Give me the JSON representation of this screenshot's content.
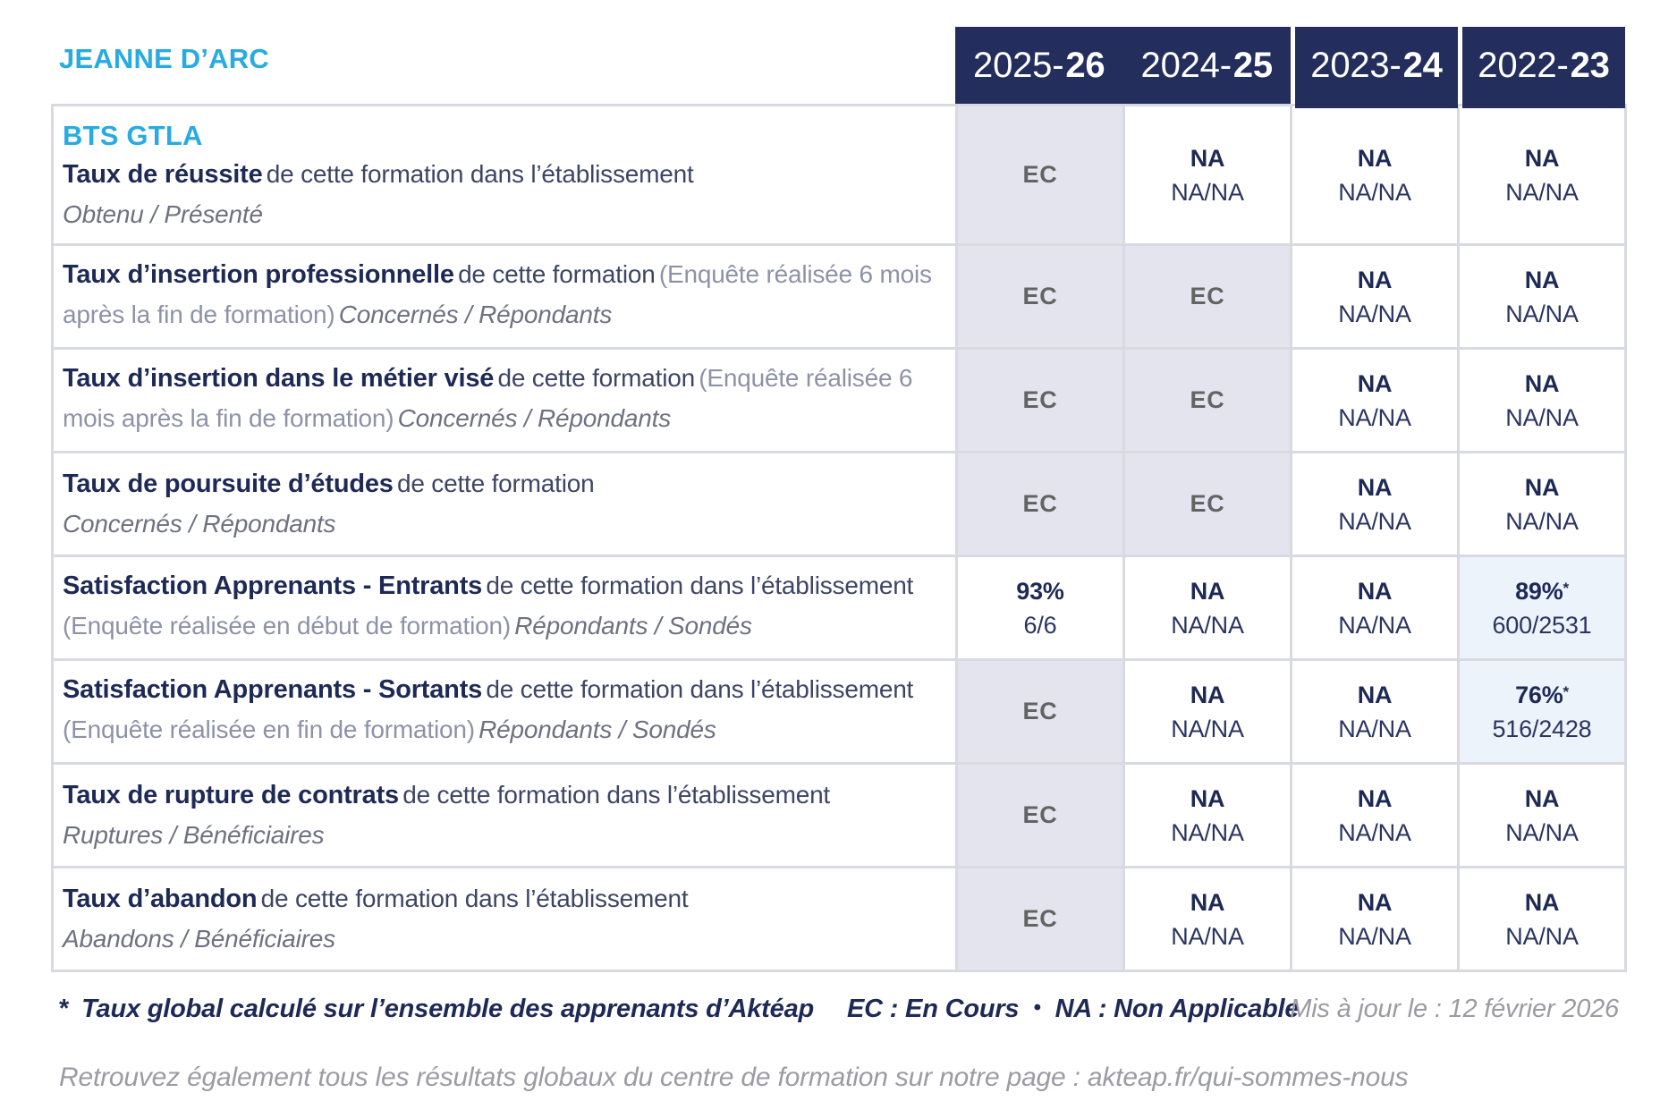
{
  "colors": {
    "accent_blue": "#29abe2",
    "navy_header": "#242e5c",
    "navy_text": "#1d2a56",
    "ec_cell_bg": "#e4e4ee",
    "highlight_cell_bg": "#ecf3fa"
  },
  "school": "JEANNE D’ARC",
  "program": "BTS GTLA",
  "years": [
    {
      "pre": "2025-",
      "bold": "26"
    },
    {
      "pre": "2024-",
      "bold": "25"
    },
    {
      "pre": "2023-",
      "bold": "24"
    },
    {
      "pre": "2022-",
      "bold": "23"
    }
  ],
  "rows": [
    {
      "title": "Taux de réussite",
      "desc": "de cette formation dans l’établissement",
      "paren": "",
      "sub": "Obtenu / Présenté",
      "cells": [
        {
          "main": "EC"
        },
        {
          "main": "NA",
          "sub": "NA/NA"
        },
        {
          "main": "NA",
          "sub": "NA/NA"
        },
        {
          "main": "NA",
          "sub": "NA/NA"
        }
      ]
    },
    {
      "title": "Taux d’insertion professionnelle",
      "desc": "de cette formation",
      "paren": "(Enquête réalisée 6 mois après la fin de formation)",
      "sub": "Concernés / Répondants",
      "cells": [
        {
          "main": "EC"
        },
        {
          "main": "EC"
        },
        {
          "main": "NA",
          "sub": "NA/NA"
        },
        {
          "main": "NA",
          "sub": "NA/NA"
        }
      ]
    },
    {
      "title": "Taux d’insertion dans le métier visé",
      "desc": "de cette formation",
      "paren": "(Enquête réalisée 6 mois après la fin de formation)",
      "sub": "Concernés / Répondants",
      "cells": [
        {
          "main": "EC"
        },
        {
          "main": "EC"
        },
        {
          "main": "NA",
          "sub": "NA/NA"
        },
        {
          "main": "NA",
          "sub": "NA/NA"
        }
      ]
    },
    {
      "title": "Taux de poursuite d’études",
      "desc": "de cette formation",
      "paren": "",
      "sub": "Concernés / Répondants",
      "cells": [
        {
          "main": "EC"
        },
        {
          "main": "EC"
        },
        {
          "main": "NA",
          "sub": "NA/NA"
        },
        {
          "main": "NA",
          "sub": "NA/NA"
        }
      ]
    },
    {
      "title": "Satisfaction Apprenants - Entrants",
      "desc": "de cette formation dans l’établissement",
      "paren": "(Enquête réalisée en début de formation)",
      "sub": "Répondants / Sondés",
      "cells": [
        {
          "main": "93%",
          "sub": "6/6"
        },
        {
          "main": "NA",
          "sub": "NA/NA"
        },
        {
          "main": "NA",
          "sub": "NA/NA"
        },
        {
          "main": "89%",
          "star": "*",
          "sub": "600/2531"
        }
      ]
    },
    {
      "title": "Satisfaction Apprenants - Sortants",
      "desc": "de cette formation dans l’établissement",
      "paren": "(Enquête réalisée en fin de formation)",
      "sub": "Répondants / Sondés",
      "cells": [
        {
          "main": "EC"
        },
        {
          "main": "NA",
          "sub": "NA/NA"
        },
        {
          "main": "NA",
          "sub": "NA/NA"
        },
        {
          "main": "76%",
          "star": "*",
          "sub": "516/2428"
        }
      ]
    },
    {
      "title": "Taux de rupture de contrats",
      "desc": "de cette formation dans l’établissement",
      "paren": "",
      "sub": "Ruptures / Bénéficiaires",
      "cells": [
        {
          "main": "EC"
        },
        {
          "main": "NA",
          "sub": "NA/NA"
        },
        {
          "main": "NA",
          "sub": "NA/NA"
        },
        {
          "main": "NA",
          "sub": "NA/NA"
        }
      ]
    },
    {
      "title": "Taux d’abandon",
      "desc": "de cette formation dans l’établissement",
      "paren": "",
      "sub": "Abandons / Bénéficiaires",
      "cells": [
        {
          "main": "EC"
        },
        {
          "main": "NA",
          "sub": "NA/NA"
        },
        {
          "main": "NA",
          "sub": "NA/NA"
        },
        {
          "main": "NA",
          "sub": "NA/NA"
        }
      ]
    }
  ],
  "footnote": {
    "star": "*",
    "star_text": "Taux global calculé sur l’ensemble des apprenants d’Aktéap",
    "legend_ec": "EC : En Cours",
    "legend_sep": "•",
    "legend_na": "NA : Non Applicable",
    "updated": "Mis à jour le : 12 février 2026"
  },
  "bottom_note": "Retrouvez également tous les résultats globaux du centre de formation sur notre page : akteap.fr/qui-sommes-nous"
}
